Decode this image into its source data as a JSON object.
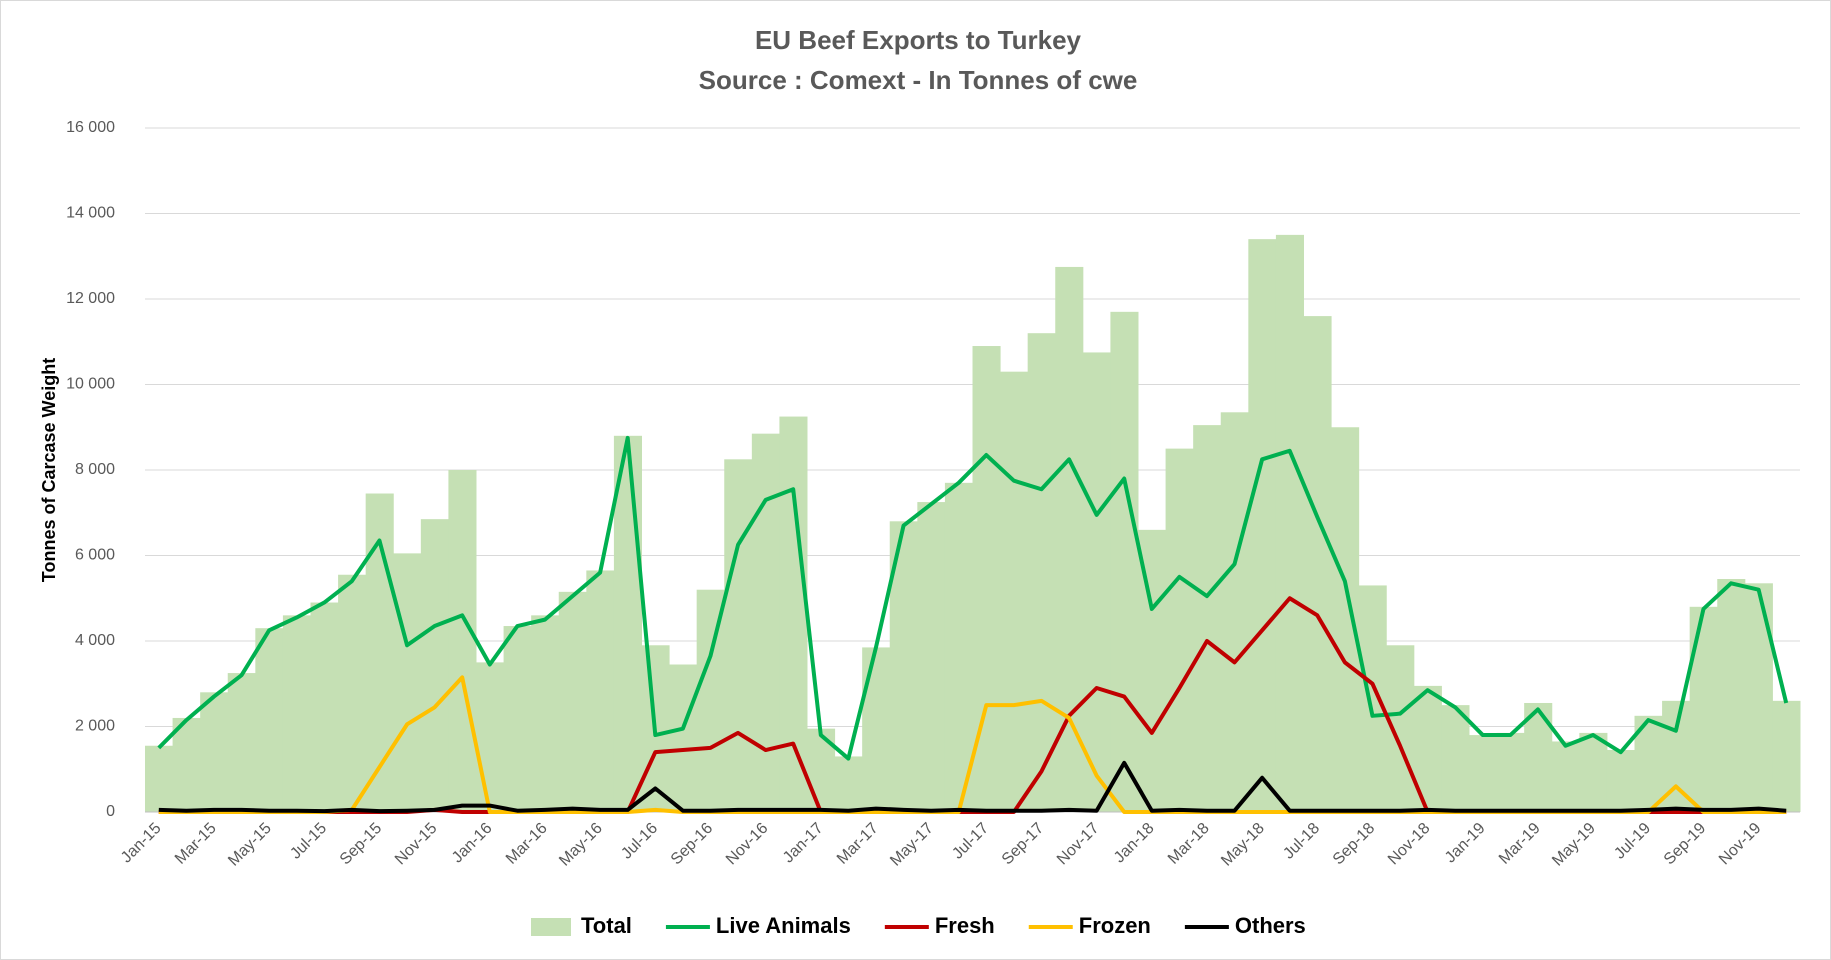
{
  "chart_data": {
    "type": "combo",
    "title": "EU Beef Exports to Turkey",
    "subtitle": "Source : Comext - In Tonnes of cwe",
    "y_label": "Tonnes of Carcase Weight",
    "categories": [
      "Jan-15",
      null,
      "Mar-15",
      null,
      "May-15",
      null,
      "Jul-15",
      null,
      "Sep-15",
      null,
      "Nov-15",
      null,
      "Jan-16",
      null,
      "Mar-16",
      null,
      "May-16",
      null,
      "Jul-16",
      null,
      "Sep-16",
      null,
      "Nov-16",
      null,
      "Jan-17",
      null,
      "Mar-17",
      null,
      "May-17",
      null,
      "Jul-17",
      null,
      "Sep-17",
      null,
      "Nov-17",
      null,
      "Jan-18",
      null,
      "Mar-18",
      null,
      "May-18",
      null,
      "Jul-18",
      null,
      "Sep-18",
      null,
      "Nov-18",
      null,
      "Jan-19",
      null,
      "Mar-19",
      null,
      "May-19",
      null,
      "Jul-19",
      null,
      "Sep-19",
      null,
      "Nov-19",
      null
    ],
    "series": [
      {
        "name": "Total",
        "type": "bar",
        "color": "#c5e0b4",
        "values": [
          1550,
          2200,
          2800,
          3250,
          4300,
          4600,
          4900,
          5550,
          7450,
          6050,
          6850,
          8000,
          3500,
          4350,
          4600,
          5150,
          5650,
          8800,
          3900,
          3450,
          5200,
          8250,
          8850,
          9250,
          1950,
          1300,
          3850,
          6800,
          7250,
          7700,
          10900,
          10300,
          11200,
          12750,
          10750,
          11700,
          6600,
          8500,
          9050,
          9350,
          13400,
          13500,
          11600,
          9000,
          5300,
          3900,
          2950,
          2500,
          1800,
          1850,
          2550,
          1650,
          1850,
          1450,
          2250,
          2600,
          4800,
          5450,
          5350,
          2600
        ]
      },
      {
        "name": "Live Animals",
        "type": "line",
        "color": "#00b050",
        "values": [
          1500,
          2150,
          2700,
          3200,
          4250,
          4550,
          4900,
          5400,
          6350,
          3900,
          4350,
          4600,
          3450,
          4350,
          4500,
          5050,
          5600,
          8750,
          1800,
          1950,
          3650,
          6250,
          7300,
          7550,
          1800,
          1250,
          3850,
          6700,
          7200,
          7700,
          8350,
          7750,
          7550,
          8250,
          6950,
          7800,
          4750,
          5500,
          5050,
          5800,
          8250,
          8450,
          6900,
          5400,
          2250,
          2300,
          2850,
          2450,
          1800,
          1800,
          2400,
          1550,
          1800,
          1400,
          2150,
          1900,
          4750,
          5350,
          5200,
          2550
        ]
      },
      {
        "name": "Fresh",
        "type": "line",
        "color": "#c00000",
        "values": [
          0,
          0,
          0,
          0,
          0,
          0,
          0,
          0,
          0,
          0,
          50,
          0,
          0,
          0,
          0,
          0,
          0,
          0,
          1400,
          1450,
          1500,
          1850,
          1450,
          1600,
          0,
          0,
          0,
          0,
          0,
          0,
          0,
          0,
          950,
          2250,
          2900,
          2700,
          1850,
          2900,
          4000,
          3500,
          4250,
          5000,
          4600,
          3500,
          3000,
          1550,
          0,
          0,
          0,
          0,
          0,
          0,
          0,
          0,
          0,
          0,
          0,
          0,
          0,
          0
        ]
      },
      {
        "name": "Frozen",
        "type": "line",
        "color": "#ffc000",
        "values": [
          0,
          0,
          0,
          0,
          0,
          0,
          0,
          50,
          1050,
          2050,
          2450,
          3150,
          0,
          0,
          0,
          0,
          0,
          0,
          50,
          0,
          0,
          0,
          0,
          0,
          0,
          0,
          0,
          0,
          0,
          0,
          2500,
          2500,
          2600,
          2200,
          850,
          0,
          0,
          0,
          0,
          0,
          0,
          0,
          0,
          0,
          0,
          0,
          0,
          0,
          0,
          0,
          0,
          0,
          0,
          0,
          0,
          600,
          0,
          0,
          0,
          0
        ]
      },
      {
        "name": "Others",
        "type": "line",
        "color": "#000000",
        "values": [
          50,
          30,
          50,
          50,
          30,
          30,
          20,
          50,
          20,
          30,
          50,
          150,
          150,
          30,
          50,
          80,
          50,
          50,
          550,
          30,
          30,
          50,
          50,
          50,
          50,
          30,
          80,
          50,
          30,
          50,
          30,
          30,
          30,
          50,
          30,
          1150,
          30,
          50,
          30,
          30,
          800,
          30,
          30,
          30,
          30,
          30,
          50,
          30,
          30,
          30,
          30,
          30,
          30,
          30,
          50,
          80,
          50,
          50,
          80,
          30
        ]
      }
    ],
    "ylim": [
      0,
      16000
    ],
    "yticks": [
      0,
      {
        "value": 2000,
        "label": "2 000"
      },
      {
        "value": 4000,
        "label": "4 000"
      },
      {
        "value": 6000,
        "label": "6 000"
      },
      {
        "value": 8000,
        "label": "8 000"
      },
      {
        "value": 10000,
        "label": "10 000"
      },
      {
        "value": 12000,
        "label": "12 000"
      },
      {
        "value": 14000,
        "label": "14 000"
      },
      {
        "value": 16000,
        "label": "16 000"
      }
    ],
    "grid": true,
    "legend": "bottom"
  }
}
